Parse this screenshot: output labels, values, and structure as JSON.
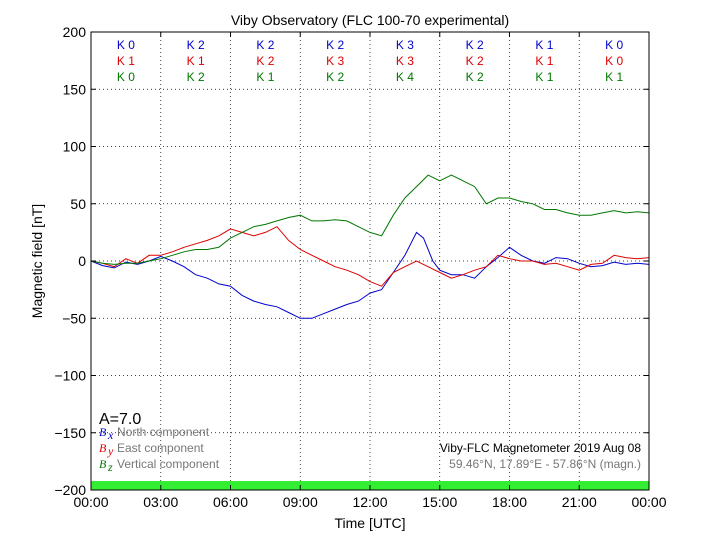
{
  "chart_data": {
    "type": "line",
    "title": "Viby Observatory (FLC 100-70 experimental)",
    "xlabel": "Time [UTC]",
    "ylabel": "Magnetic field [nT]",
    "xlim": [
      0,
      24
    ],
    "ylim": [
      -200,
      200
    ],
    "x_ticks": [
      0,
      3,
      6,
      9,
      12,
      15,
      18,
      21,
      24
    ],
    "x_tick_labels": [
      "00:00",
      "03:00",
      "06:00",
      "09:00",
      "12:00",
      "15:00",
      "18:00",
      "21:00",
      "00:00"
    ],
    "y_ticks": [
      200,
      150,
      100,
      50,
      0,
      -50,
      -100,
      -150,
      -200
    ],
    "y_tick_labels": [
      "200",
      "150",
      "100",
      "50",
      "0",
      "−50",
      "−100",
      "−150",
      "−200"
    ],
    "grid": true,
    "k_indices": {
      "rows": [
        {
          "color": "#0000cc",
          "labels": [
            "K 0",
            "K 2",
            "K 2",
            "K 2",
            "K 3",
            "K 2",
            "K 1",
            "K 0"
          ]
        },
        {
          "color": "#dd0000",
          "labels": [
            "K 1",
            "K 1",
            "K 2",
            "K 3",
            "K 3",
            "K 2",
            "K 1",
            "K 0"
          ]
        },
        {
          "color": "#007700",
          "labels": [
            "K 0",
            "K 2",
            "K 1",
            "K 2",
            "K 4",
            "K 2",
            "K 1",
            "K 1"
          ]
        }
      ]
    },
    "a_index_label": "A=7.0",
    "legend": {
      "placement": "lower-left",
      "entries": [
        {
          "symbol": "B",
          "sub": "x",
          "label": "North component",
          "color": "#0000cc"
        },
        {
          "symbol": "B",
          "sub": "y",
          "label": "East component",
          "color": "#dd0000"
        },
        {
          "symbol": "B",
          "sub": "z",
          "label": "Vertical component",
          "color": "#007700"
        }
      ]
    },
    "info": {
      "line1": "Viby-FLC Magnetometer 2019 Aug 08",
      "line2": "59.46°N, 17.89°E - 57.86°N (magn.)"
    },
    "status_bar_color": "#33ee33",
    "series": [
      {
        "name": "North component",
        "color": "#0000cc",
        "x": [
          0,
          0.5,
          1,
          1.5,
          2,
          2.5,
          3,
          3.5,
          4,
          4.5,
          5,
          5.5,
          6,
          6.5,
          7,
          7.5,
          8,
          8.5,
          9,
          9.5,
          10,
          10.5,
          11,
          11.5,
          12,
          12.5,
          13,
          13.5,
          14,
          14.3,
          14.7,
          15,
          15.5,
          16,
          16.5,
          17,
          17.5,
          18,
          18.5,
          19,
          19.5,
          20,
          20.5,
          21,
          21.5,
          22,
          22.5,
          23,
          23.5,
          24
        ],
        "y": [
          0,
          -4,
          -6,
          -1,
          -3,
          0,
          4,
          0,
          -5,
          -12,
          -15,
          -20,
          -22,
          -30,
          -35,
          -38,
          -40,
          -45,
          -50,
          -50,
          -46,
          -42,
          -38,
          -35,
          -28,
          -25,
          -10,
          5,
          25,
          20,
          0,
          -8,
          -12,
          -12,
          -15,
          -5,
          3,
          12,
          5,
          0,
          -2,
          3,
          2,
          -2,
          -5,
          -4,
          -1,
          -3,
          -2,
          -3
        ]
      },
      {
        "name": "East component",
        "color": "#dd0000",
        "x": [
          0,
          0.5,
          1,
          1.5,
          2,
          2.5,
          3,
          3.5,
          4,
          4.5,
          5,
          5.5,
          6,
          6.5,
          7,
          7.5,
          8,
          8.5,
          9,
          9.5,
          10,
          10.5,
          11,
          11.5,
          12,
          12.5,
          13,
          13.5,
          14,
          14.5,
          15,
          15.5,
          16,
          16.5,
          17,
          17.5,
          18,
          18.5,
          19,
          19.5,
          20,
          20.5,
          21,
          21.5,
          22,
          22.5,
          23,
          23.5,
          24
        ],
        "y": [
          0,
          -2,
          -5,
          2,
          -2,
          5,
          5,
          8,
          12,
          15,
          18,
          22,
          28,
          25,
          22,
          25,
          30,
          18,
          10,
          5,
          0,
          -5,
          -8,
          -12,
          -18,
          -22,
          -10,
          -5,
          0,
          -5,
          -10,
          -15,
          -12,
          -8,
          -5,
          5,
          2,
          0,
          0,
          -3,
          -2,
          -5,
          -8,
          -3,
          -2,
          5,
          3,
          2,
          3
        ]
      },
      {
        "name": "Vertical component",
        "color": "#007700",
        "x": [
          0,
          0.5,
          1,
          1.5,
          2,
          2.5,
          3,
          3.5,
          4,
          4.5,
          5,
          5.5,
          6,
          6.5,
          7,
          7.5,
          8,
          8.5,
          9,
          9.5,
          10,
          10.5,
          11,
          11.5,
          12,
          12.5,
          13,
          13.5,
          14,
          14.5,
          15,
          15.5,
          16,
          16.5,
          17,
          17.5,
          18,
          18.5,
          19,
          19.5,
          20,
          20.5,
          21,
          21.5,
          22,
          22.5,
          23,
          23.5,
          24
        ],
        "y": [
          0,
          -2,
          -3,
          -2,
          -2,
          0,
          2,
          5,
          8,
          10,
          10,
          12,
          20,
          25,
          30,
          32,
          35,
          38,
          40,
          35,
          35,
          36,
          35,
          30,
          25,
          22,
          40,
          55,
          65,
          75,
          70,
          75,
          70,
          65,
          50,
          55,
          55,
          52,
          50,
          45,
          45,
          42,
          40,
          40,
          42,
          44,
          42,
          43,
          42
        ]
      }
    ]
  }
}
